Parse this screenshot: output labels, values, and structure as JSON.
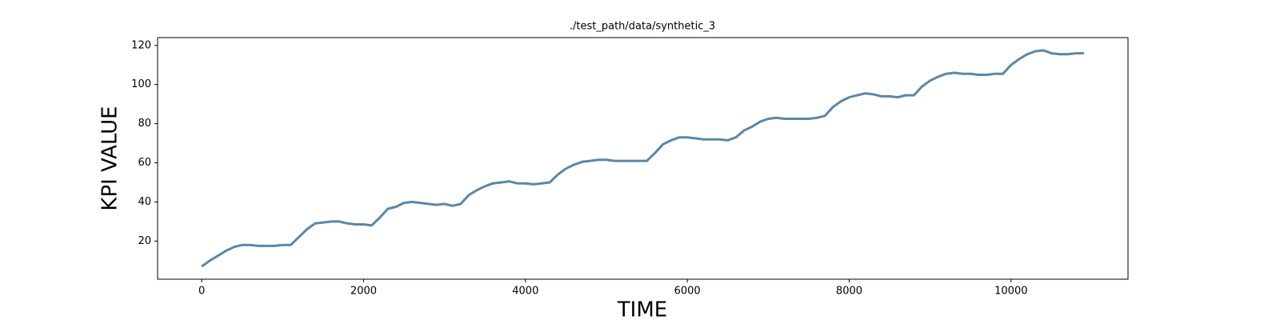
{
  "chart_data": {
    "type": "line",
    "title": "./test_path/data/synthetic_3",
    "x_label": "TIME",
    "y_label": "KPI VALUE",
    "x": [
      0,
      100,
      200,
      300,
      400,
      500,
      600,
      700,
      800,
      900,
      1000,
      1100,
      1200,
      1300,
      1400,
      1500,
      1600,
      1700,
      1800,
      1900,
      2000,
      2100,
      2200,
      2300,
      2400,
      2500,
      2600,
      2700,
      2800,
      2900,
      3000,
      3100,
      3200,
      3300,
      3400,
      3500,
      3600,
      3700,
      3800,
      3900,
      4000,
      4100,
      4200,
      4300,
      4400,
      4500,
      4600,
      4700,
      4800,
      4900,
      5000,
      5100,
      5200,
      5300,
      5400,
      5500,
      5600,
      5700,
      5800,
      5900,
      6000,
      6100,
      6200,
      6300,
      6400,
      6500,
      6600,
      6700,
      6800,
      6900,
      7000,
      7100,
      7200,
      7300,
      7400,
      7500,
      7600,
      7700,
      7800,
      7900,
      8000,
      8100,
      8200,
      8300,
      8400,
      8500,
      8600,
      8700,
      8800,
      8900,
      9000,
      9100,
      9200,
      9300,
      9400,
      9500,
      9600,
      9700,
      9800,
      9900,
      10000,
      10100,
      10200,
      10300,
      10400,
      10500,
      10600,
      10700,
      10800,
      10900
    ],
    "series": [
      {
        "color": "#5b87a8",
        "values": [
          7,
          10,
          12.5,
          15,
          17,
          18,
          18,
          17.5,
          17.5,
          17.5,
          18,
          18,
          22,
          26,
          29,
          29.5,
          30,
          30,
          29,
          28.5,
          28.5,
          28,
          32,
          36.5,
          37.5,
          39.5,
          40,
          39.5,
          39,
          38.5,
          39,
          38,
          39,
          43.5,
          46,
          48,
          49.5,
          50,
          50.5,
          49.5,
          49.5,
          49,
          49.5,
          50,
          54,
          57,
          59,
          60.5,
          61,
          61.5,
          61.5,
          61,
          61,
          61,
          61,
          61,
          65,
          69.5,
          71.5,
          73,
          73,
          72.5,
          72,
          72,
          72,
          71.5,
          73,
          76.5,
          78.5,
          81,
          82.5,
          83,
          82.5,
          82.5,
          82.5,
          82.5,
          83,
          84,
          88.5,
          91.5,
          93.5,
          94.5,
          95.5,
          95,
          94,
          94,
          93.5,
          94.5,
          94.5,
          99,
          102,
          104,
          105.5,
          106,
          105.5,
          105.5,
          105,
          105,
          105.5,
          105.5,
          110,
          113,
          115.5,
          117,
          117.5,
          116,
          115.5,
          115.5,
          116,
          116
        ]
      }
    ],
    "xlim": [
      -545,
      11445
    ],
    "xticks": [
      0,
      2000,
      4000,
      6000,
      8000,
      10000
    ],
    "ylim": [
      0.5,
      124
    ],
    "yticks": [
      20,
      40,
      60,
      80,
      100,
      120
    ]
  }
}
